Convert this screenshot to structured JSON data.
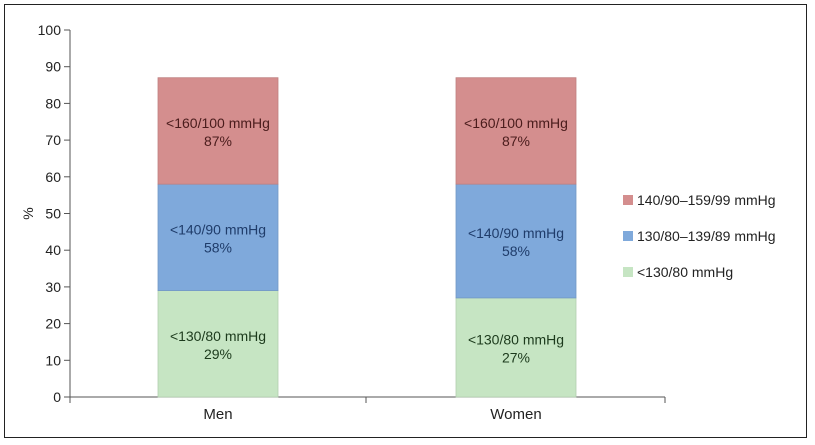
{
  "chart_data": {
    "type": "bar",
    "stacked": true,
    "ylabel": "%",
    "ylim": [
      0,
      100
    ],
    "yticks": [
      0,
      10,
      20,
      30,
      40,
      50,
      60,
      70,
      80,
      90,
      100
    ],
    "categories": [
      "Men",
      "Women"
    ],
    "series": [
      {
        "name": "<130/80 mmHg",
        "color": "#c6e5c3",
        "cumulative": [
          29,
          27
        ],
        "labels": [
          {
            "line1": "<130/80 mmHg",
            "line2": "29%"
          },
          {
            "line1": "<130/80 mmHg",
            "line2": "27%"
          }
        ]
      },
      {
        "name": "130/80–139/89 mmHg",
        "color": "#7fa9db",
        "cumulative": [
          58,
          58
        ],
        "labels": [
          {
            "line1": "<140/90 mmHg",
            "line2": "58%"
          },
          {
            "line1": "<140/90 mmHg",
            "line2": "58%"
          }
        ]
      },
      {
        "name": "140/90–159/99 mmHg",
        "color": "#d48e8e",
        "cumulative": [
          87,
          87
        ],
        "labels": [
          {
            "line1": "<160/100 mmHg",
            "line2": "87%"
          },
          {
            "line1": "<160/100 mmHg",
            "line2": "87%"
          }
        ]
      }
    ],
    "legend_order": [
      2,
      1,
      0
    ],
    "legend_position": "right",
    "grid": false
  }
}
